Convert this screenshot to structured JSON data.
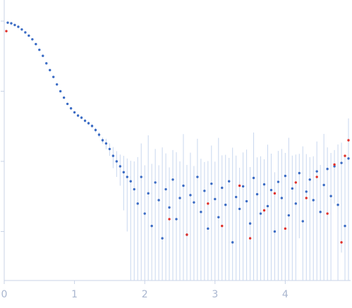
{
  "chart_data": {
    "type": "scatter",
    "yscale": "log",
    "xlim": [
      0,
      4.93
    ],
    "xticks": [
      0,
      1,
      2,
      3,
      4
    ],
    "ylim": [
      0.0002,
      2
    ],
    "yticks": [
      0.001,
      0.01,
      0.1,
      1
    ],
    "error_color": "#c8d7ef",
    "series": [
      {
        "color": "#3a6bc4",
        "x": [
          0.05,
          0.1,
          0.15,
          0.2,
          0.25,
          0.3,
          0.35,
          0.4,
          0.45,
          0.5,
          0.55,
          0.6,
          0.65,
          0.7,
          0.75,
          0.8,
          0.85,
          0.9,
          0.95,
          1.0,
          1.05,
          1.1,
          1.15,
          1.2,
          1.25,
          1.3,
          1.35,
          1.4,
          1.45,
          1.5,
          1.55,
          1.6,
          1.65,
          1.7,
          1.75,
          1.8,
          1.85,
          1.9,
          1.95,
          2.0,
          2.05,
          2.1,
          2.15,
          2.2,
          2.25,
          2.3,
          2.35,
          2.4,
          2.45,
          2.5,
          2.55,
          2.6,
          2.65,
          2.7,
          2.75,
          2.8,
          2.85,
          2.9,
          2.95,
          3.0,
          3.05,
          3.1,
          3.15,
          3.2,
          3.25,
          3.3,
          3.35,
          3.4,
          3.45,
          3.5,
          3.55,
          3.6,
          3.65,
          3.7,
          3.75,
          3.8,
          3.85,
          3.9,
          3.95,
          4.0,
          4.05,
          4.1,
          4.15,
          4.2,
          4.25,
          4.3,
          4.35,
          4.4,
          4.45,
          4.5,
          4.55,
          4.6,
          4.65,
          4.7,
          4.75,
          4.8,
          4.85,
          4.9
        ],
        "values": [
          0.95,
          0.93,
          0.88,
          0.83,
          0.76,
          0.69,
          0.62,
          0.55,
          0.47,
          0.39,
          0.32,
          0.25,
          0.2,
          0.16,
          0.125,
          0.1,
          0.081,
          0.066,
          0.057,
          0.05,
          0.045,
          0.042,
          0.038,
          0.035,
          0.032,
          0.028,
          0.024,
          0.02,
          0.018,
          0.015,
          0.012,
          0.01,
          0.0085,
          0.007,
          0.006,
          0.0052,
          0.004,
          0.0025,
          0.006,
          0.0018,
          0.0035,
          0.0012,
          0.005,
          0.0028,
          0.0008,
          0.004,
          0.0022,
          0.0055,
          0.0015,
          0.003,
          0.0045,
          0.0009,
          0.0033,
          0.0026,
          0.006,
          0.0019,
          0.0038,
          0.0011,
          0.0048,
          0.0029,
          0.0016,
          0.0042,
          0.0024,
          0.0052,
          0.0007,
          0.0031,
          0.0021,
          0.0044,
          0.0027,
          0.0013,
          0.0058,
          0.0034,
          0.0018,
          0.0047,
          0.0023,
          0.0039,
          0.001,
          0.0051,
          0.003,
          0.0062,
          0.0017,
          0.0041,
          0.0025,
          0.0068,
          0.0014,
          0.0037,
          0.0055,
          0.0028,
          0.0072,
          0.0019,
          0.0046,
          0.0078,
          0.0032,
          0.0085,
          0.0024,
          0.0095,
          0.0012,
          0.011
        ],
        "errors": [
          0.002,
          0.002,
          0.002,
          0.002,
          0.002,
          0.002,
          0.002,
          0.002,
          0.002,
          0.002,
          0.002,
          0.002,
          0.002,
          0.002,
          0.002,
          0.002,
          0.002,
          0.002,
          0.002,
          0.002,
          0.002,
          0.002,
          0.002,
          0.002,
          0.002,
          0.002,
          0.002,
          0.002,
          0.003,
          0.003,
          0.004,
          0.004,
          0.004,
          0.005,
          0.005,
          0.005,
          0.006,
          0.009,
          0.012,
          0.007,
          0.02,
          0.008,
          0.01,
          0.006,
          0.015,
          0.009,
          0.006,
          0.009,
          0.012,
          0.007,
          0.02,
          0.008,
          0.01,
          0.006,
          0.015,
          0.009,
          0.006,
          0.009,
          0.012,
          0.007,
          0.02,
          0.008,
          0.01,
          0.006,
          0.015,
          0.009,
          0.006,
          0.009,
          0.012,
          0.007,
          0.02,
          0.008,
          0.01,
          0.006,
          0.015,
          0.009,
          0.006,
          0.009,
          0.012,
          0.007,
          0.02,
          0.008,
          0.01,
          0.006,
          0.015,
          0.009,
          0.006,
          0.009,
          0.012,
          0.007,
          0.02,
          0.008,
          0.01,
          0.006,
          0.015,
          0.009,
          0.011,
          0.03
        ]
      },
      {
        "color": "#e0302a",
        "x": [
          0.03,
          2.35,
          2.6,
          2.9,
          3.1,
          3.35,
          3.5,
          3.7,
          3.85,
          4.0,
          4.15,
          4.3,
          4.45,
          4.6,
          4.7,
          4.8,
          4.85,
          4.9
        ],
        "values": [
          0.72,
          0.0015,
          0.0009,
          0.0025,
          0.0012,
          0.0045,
          0.0008,
          0.002,
          0.0035,
          0.0011,
          0.005,
          0.003,
          0.006,
          0.0018,
          0.009,
          0.0007,
          0.012,
          0.02
        ]
      }
    ]
  }
}
